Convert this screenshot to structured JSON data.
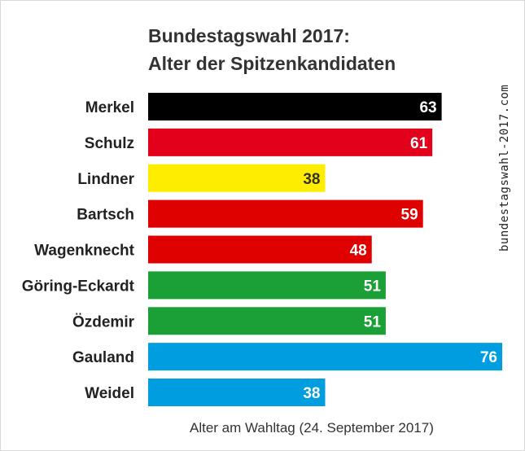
{
  "chart_data": {
    "type": "bar",
    "orientation": "horizontal",
    "title": "Bundestagswahl 2017:",
    "subtitle": "Alter der Spitzenkandidaten",
    "xlabel": "Alter am Wahltag (24. September 2017)",
    "categories": [
      "Merkel",
      "Schulz",
      "Lindner",
      "Bartsch",
      "Wagenknecht",
      "Göring-Eckardt",
      "Özdemir",
      "Gauland",
      "Weidel"
    ],
    "values": [
      63,
      61,
      38,
      59,
      48,
      51,
      51,
      76,
      38
    ],
    "colors": [
      "#000000",
      "#e3001b",
      "#ffed00",
      "#df0000",
      "#df0000",
      "#1aa037",
      "#1aa037",
      "#009ee0",
      "#009ee0"
    ],
    "label_colors": [
      "#ffffff",
      "#ffffff",
      "#333333",
      "#ffffff",
      "#ffffff",
      "#ffffff",
      "#ffffff",
      "#ffffff",
      "#ffffff"
    ],
    "xlim": [
      0,
      76
    ],
    "grid": false,
    "legend": "none"
  },
  "source_text": "bundestagswahl-2017.com"
}
